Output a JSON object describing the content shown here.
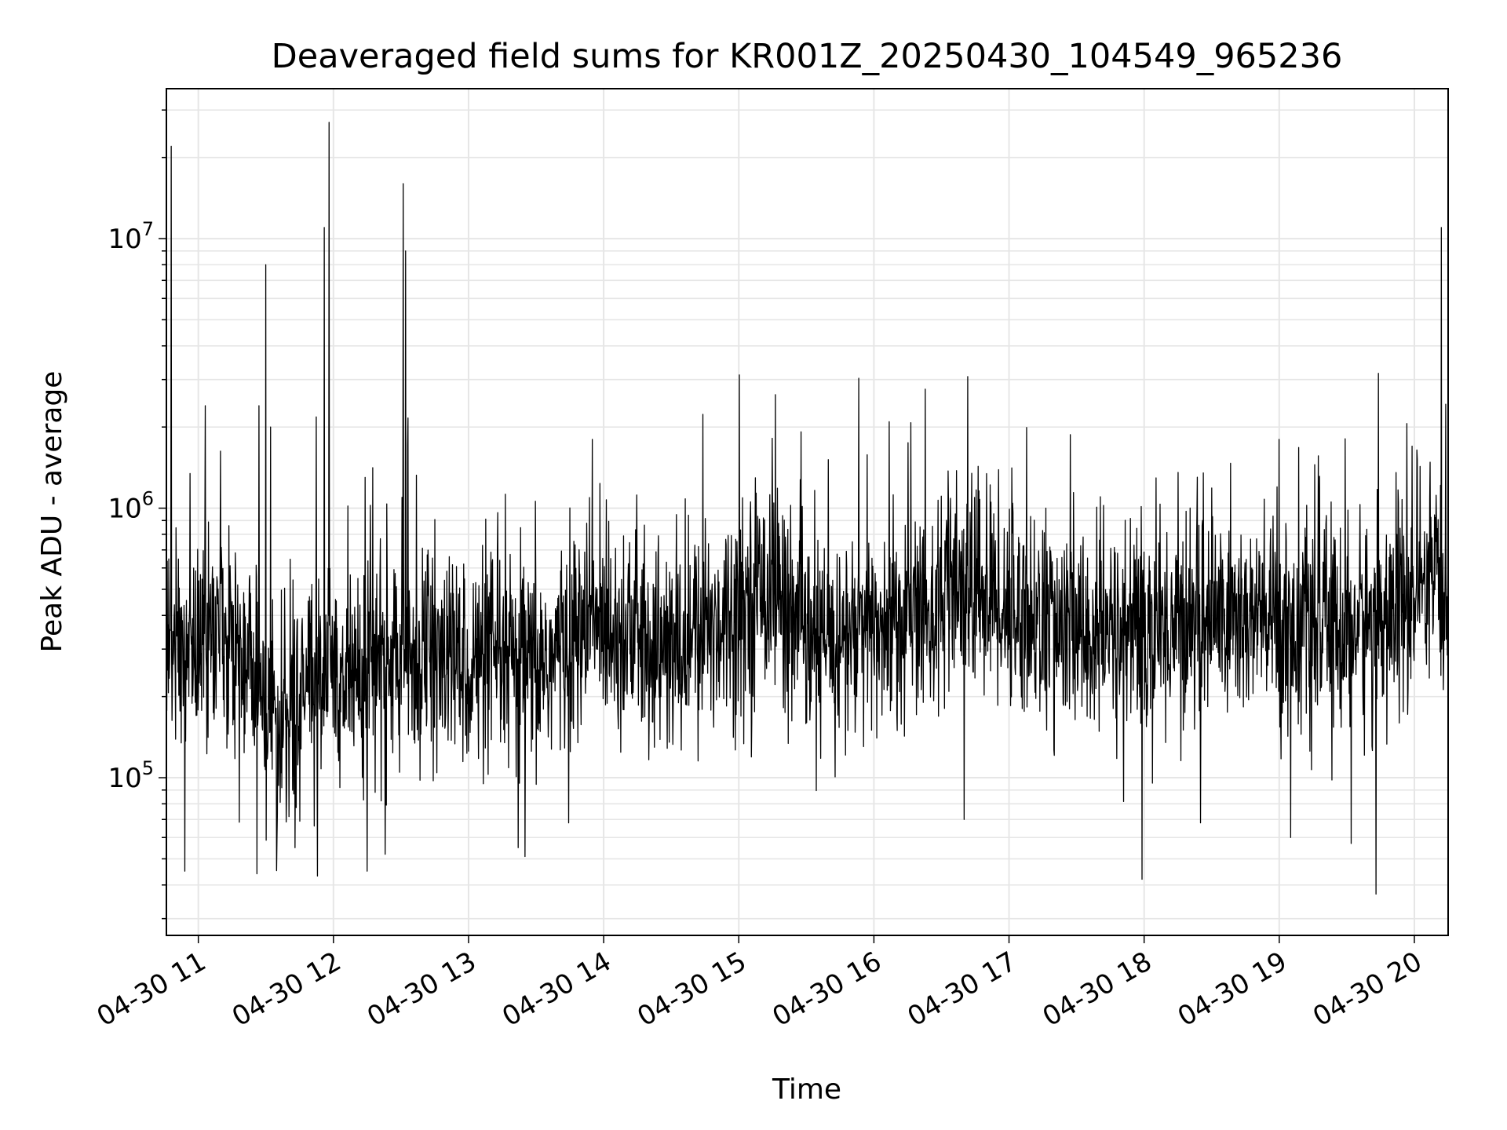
{
  "chart_data": {
    "type": "line",
    "title": "Deaveraged field sums for KR001Z_20250430_104549_965236",
    "xlabel": "Time",
    "ylabel": "Peak ADU - average",
    "y_scale": "log",
    "x_start": "2025-04-30 10:45:49",
    "x_end": "2025-04-30 20:15:00",
    "ylim": [
      26000,
      36000000
    ],
    "grid": true,
    "line_color": "#000000",
    "grid_color": "#e6e6e6",
    "x_ticks": [
      {
        "hour": 11,
        "label": "04-30 11"
      },
      {
        "hour": 12,
        "label": "04-30 12"
      },
      {
        "hour": 13,
        "label": "04-30 13"
      },
      {
        "hour": 14,
        "label": "04-30 14"
      },
      {
        "hour": 15,
        "label": "04-30 15"
      },
      {
        "hour": 16,
        "label": "04-30 16"
      },
      {
        "hour": 17,
        "label": "04-30 17"
      },
      {
        "hour": 18,
        "label": "04-30 18"
      },
      {
        "hour": 19,
        "label": "04-30 19"
      },
      {
        "hour": 20,
        "label": "04-30 20"
      }
    ],
    "y_ticks": [
      {
        "value": 100000,
        "base": "10",
        "exp": "5"
      },
      {
        "value": 1000000,
        "base": "10",
        "exp": "6"
      },
      {
        "value": 10000000,
        "base": "10",
        "exp": "7"
      }
    ],
    "baseline": [
      {
        "time": "2025-04-30 10:45",
        "value": 300000
      },
      {
        "time": "2025-04-30 11:15",
        "value": 350000
      },
      {
        "time": "2025-04-30 11:35",
        "value": 150000
      },
      {
        "time": "2025-04-30 11:50",
        "value": 230000
      },
      {
        "time": "2025-04-30 12:30",
        "value": 280000
      },
      {
        "time": "2025-04-30 13:30",
        "value": 250000
      },
      {
        "time": "2025-04-30 14:00",
        "value": 400000
      },
      {
        "time": "2025-04-30 14:30",
        "value": 280000
      },
      {
        "time": "2025-04-30 15:15",
        "value": 550000
      },
      {
        "time": "2025-04-30 15:30",
        "value": 300000
      },
      {
        "time": "2025-04-30 16:00",
        "value": 350000
      },
      {
        "time": "2025-04-30 16:45",
        "value": 500000
      },
      {
        "time": "2025-04-30 17:30",
        "value": 330000
      },
      {
        "time": "2025-04-30 18:00",
        "value": 350000
      },
      {
        "time": "2025-04-30 18:30",
        "value": 400000
      },
      {
        "time": "2025-04-30 19:30",
        "value": 350000
      },
      {
        "time": "2025-04-30 20:15",
        "value": 500000
      }
    ],
    "spikes": [
      {
        "time": "2025-04-30 10:48",
        "value": 22000000
      },
      {
        "time": "2025-04-30 11:03",
        "value": 2400000
      },
      {
        "time": "2025-04-30 11:27",
        "value": 2400000
      },
      {
        "time": "2025-04-30 11:30",
        "value": 8000000
      },
      {
        "time": "2025-04-30 11:32",
        "value": 2000000
      },
      {
        "time": "2025-04-30 11:56",
        "value": 11000000
      },
      {
        "time": "2025-04-30 11:58",
        "value": 27000000
      },
      {
        "time": "2025-04-30 12:14",
        "value": 1300000
      },
      {
        "time": "2025-04-30 12:31",
        "value": 16000000
      },
      {
        "time": "2025-04-30 12:32",
        "value": 9000000
      },
      {
        "time": "2025-04-30 12:33",
        "value": 1700000
      },
      {
        "time": "2025-04-30 13:55",
        "value": 1800000
      },
      {
        "time": "2025-04-30 19:00",
        "value": 1800000
      },
      {
        "time": "2025-04-30 20:12",
        "value": 11000000
      }
    ],
    "dips": [
      {
        "time": "2025-04-30 10:54",
        "value": 45000
      },
      {
        "time": "2025-04-30 11:26",
        "value": 44000
      },
      {
        "time": "2025-04-30 11:43",
        "value": 55000
      },
      {
        "time": "2025-04-30 12:15",
        "value": 45000
      },
      {
        "time": "2025-04-30 12:23",
        "value": 52000
      },
      {
        "time": "2025-04-30 13:22",
        "value": 55000
      },
      {
        "time": "2025-04-30 13:25",
        "value": 51000
      },
      {
        "time": "2025-04-30 16:40",
        "value": 70000
      },
      {
        "time": "2025-04-30 17:59",
        "value": 42000
      },
      {
        "time": "2025-04-30 18:25",
        "value": 68000
      },
      {
        "time": "2025-04-30 19:05",
        "value": 60000
      },
      {
        "time": "2025-04-30 19:32",
        "value": 57000
      },
      {
        "time": "2025-04-30 19:43",
        "value": 37000
      }
    ]
  }
}
